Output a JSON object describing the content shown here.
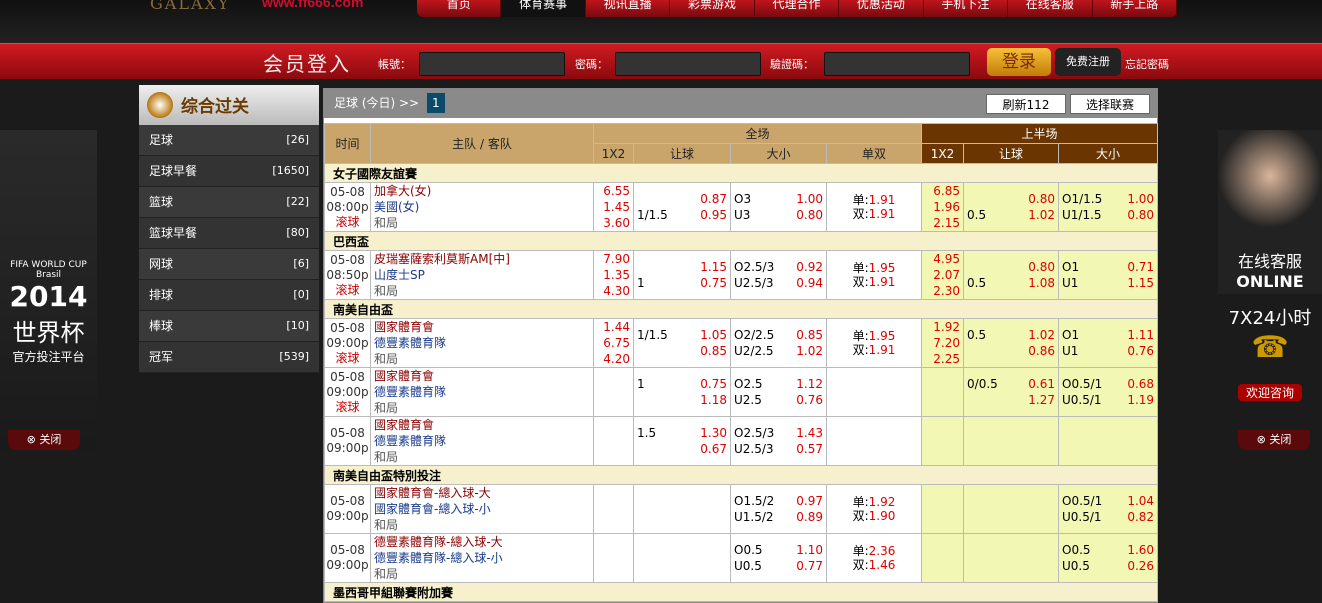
{
  "header": {
    "logo": "GALAXY",
    "url": "www.ff666.com",
    "nav": [
      "首页",
      "体育赛事",
      "视讯直播",
      "彩票游戏",
      "代理合作",
      "优惠活动",
      "手机下注",
      "在线客服",
      "新手上路"
    ],
    "active_nav": 1
  },
  "login": {
    "title": "会员登入",
    "account_label": "帳號：",
    "password_label": "密碼：",
    "captcha_label": "驗證碼：",
    "login_button": "登录",
    "register_button": "免费注册",
    "forgot": "忘記密碼"
  },
  "sidebar": {
    "title": "综合过关",
    "items": [
      {
        "label": "足球",
        "count": "[26]"
      },
      {
        "label": "足球早餐",
        "count": "[1650]"
      },
      {
        "label": "篮球",
        "count": "[22]"
      },
      {
        "label": "篮球早餐",
        "count": "[80]"
      },
      {
        "label": "网球",
        "count": "[6]"
      },
      {
        "label": "排球",
        "count": "[0]"
      },
      {
        "label": "棒球",
        "count": "[10]"
      },
      {
        "label": "冠军",
        "count": "[539]"
      }
    ]
  },
  "main": {
    "breadcrumb": "足球 (今日) >>",
    "page": "1",
    "refresh": "刷新112",
    "select_league": "选择联赛",
    "headers": {
      "time": "时间",
      "teams": "主队 / 客队",
      "full": "全场",
      "half": "上半场",
      "x12": "1X2",
      "hdp": "让球",
      "ou": "大小",
      "oe": "单双"
    },
    "rows": [
      {
        "league": "女子國際友誼賽"
      },
      {
        "date": "05-08",
        "time": "08:00p",
        "live": "滚球",
        "home": "加拿大(女)",
        "away": "美國(女)",
        "draw": "和局",
        "x12": [
          "6.55",
          "1.45",
          "3.60"
        ],
        "hdp": [
          [
            "",
            "0.87"
          ],
          [
            "1/1.5",
            "0.95"
          ]
        ],
        "ou": [
          [
            "O3",
            "1.00"
          ],
          [
            "U3",
            "0.80"
          ]
        ],
        "oe": [
          "单:",
          "1.91",
          "双:",
          "1.91"
        ],
        "hx12": [
          "6.85",
          "1.96",
          "2.15"
        ],
        "hhdp": [
          [
            "",
            "0.80"
          ],
          [
            "0.5",
            "1.02"
          ]
        ],
        "hou": [
          [
            "O1/1.5",
            "1.00"
          ],
          [
            "U1/1.5",
            "0.80"
          ]
        ]
      },
      {
        "league": "巴西盃"
      },
      {
        "date": "05-08",
        "time": "08:50p",
        "live": "滚球",
        "home": "皮瑞塞薩索利莫斯AM[中]",
        "away": "山度士SP",
        "draw": "和局",
        "x12": [
          "7.90",
          "1.35",
          "4.30"
        ],
        "hdp": [
          [
            "",
            "1.15"
          ],
          [
            "1",
            "0.75"
          ]
        ],
        "ou": [
          [
            "O2.5/3",
            "0.92"
          ],
          [
            "U2.5/3",
            "0.94"
          ]
        ],
        "oe": [
          "单:",
          "1.95",
          "双:",
          "1.91"
        ],
        "hx12": [
          "4.95",
          "2.07",
          "2.30"
        ],
        "hhdp": [
          [
            "",
            "0.80"
          ],
          [
            "0.5",
            "1.08"
          ]
        ],
        "hou": [
          [
            "O1",
            "0.71"
          ],
          [
            "U1",
            "1.15"
          ]
        ]
      },
      {
        "league": "南美自由盃"
      },
      {
        "date": "05-08",
        "time": "09:00p",
        "live": "滚球",
        "home": "國家體育會",
        "away": "德豐素體育隊",
        "draw": "和局",
        "x12": [
          "1.44",
          "6.75",
          "4.20"
        ],
        "hdp": [
          [
            "1/1.5",
            "1.05"
          ],
          [
            "",
            "0.85"
          ]
        ],
        "ou": [
          [
            "O2/2.5",
            "0.85"
          ],
          [
            "U2/2.5",
            "1.02"
          ]
        ],
        "oe": [
          "单:",
          "1.95",
          "双:",
          "1.91"
        ],
        "hx12": [
          "1.92",
          "7.20",
          "2.25"
        ],
        "hhdp": [
          [
            "0.5",
            "1.02"
          ],
          [
            "",
            "0.86"
          ]
        ],
        "hou": [
          [
            "O1",
            "1.11"
          ],
          [
            "U1",
            "0.76"
          ]
        ]
      },
      {
        "date": "05-08",
        "time": "09:00p",
        "live": "滚球",
        "home": "國家體育會",
        "away": "德豐素體育隊",
        "draw": "和局",
        "x12": [
          "",
          "",
          ""
        ],
        "hdp": [
          [
            "1",
            "0.75"
          ],
          [
            "",
            "1.18"
          ]
        ],
        "ou": [
          [
            "O2.5",
            "1.12"
          ],
          [
            "U2.5",
            "0.76"
          ]
        ],
        "oe": null,
        "hx12": [
          "",
          "",
          ""
        ],
        "hhdp": [
          [
            "0/0.5",
            "0.61"
          ],
          [
            "",
            "1.27"
          ]
        ],
        "hou": [
          [
            "O0.5/1",
            "0.68"
          ],
          [
            "U0.5/1",
            "1.19"
          ]
        ]
      },
      {
        "date": "05-08",
        "time": "09:00p",
        "live": "",
        "home": "國家體育會",
        "away": "德豐素體育隊",
        "draw": "和局",
        "x12": [
          "",
          "",
          ""
        ],
        "hdp": [
          [
            "1.5",
            "1.30"
          ],
          [
            "",
            "0.67"
          ]
        ],
        "ou": [
          [
            "O2.5/3",
            "1.43"
          ],
          [
            "U2.5/3",
            "0.57"
          ]
        ],
        "oe": null,
        "hx12": [
          "",
          "",
          ""
        ],
        "hhdp": null,
        "hou": null
      },
      {
        "league": "南美自由盃特別投注"
      },
      {
        "date": "05-08",
        "time": "09:00p",
        "live": "",
        "home": "國家體育會-總入球-大",
        "away": "國家體育會-總入球-小",
        "draw": "和局",
        "x12": [
          "",
          "",
          ""
        ],
        "hdp": null,
        "ou": [
          [
            "O1.5/2",
            "0.97"
          ],
          [
            "U1.5/2",
            "0.89"
          ]
        ],
        "oe": [
          "单:",
          "1.92",
          "双:",
          "1.90"
        ],
        "hx12": [
          "",
          "",
          ""
        ],
        "hhdp": null,
        "hou": [
          [
            "O0.5/1",
            "1.04"
          ],
          [
            "U0.5/1",
            "0.82"
          ]
        ]
      },
      {
        "date": "05-08",
        "time": "09:00p",
        "live": "",
        "home": "德豐素體育隊-總入球-大",
        "away": "德豐素體育隊-總入球-小",
        "draw": "和局",
        "x12": [
          "",
          "",
          ""
        ],
        "hdp": null,
        "ou": [
          [
            "O0.5",
            "1.10"
          ],
          [
            "U0.5",
            "0.77"
          ]
        ],
        "oe": [
          "单:",
          "2.36",
          "双:",
          "1.46"
        ],
        "hx12": [
          "",
          "",
          ""
        ],
        "hhdp": null,
        "hou": [
          [
            "O0.5",
            "1.60"
          ],
          [
            "U0.5",
            "0.26"
          ]
        ]
      },
      {
        "league": "墨西哥甲組聯賽附加賽"
      }
    ]
  },
  "ads": {
    "left": {
      "cup": "FIFA WORLD CUP Brasil",
      "year": "2014",
      "title": "世界杯",
      "sub": "官方投注平台",
      "close": "关闭"
    },
    "right": {
      "title": "在线客服",
      "online": "ONLINE",
      "hours": "7X24小时",
      "welcome": "欢迎咨询",
      "close": "关闭"
    }
  }
}
